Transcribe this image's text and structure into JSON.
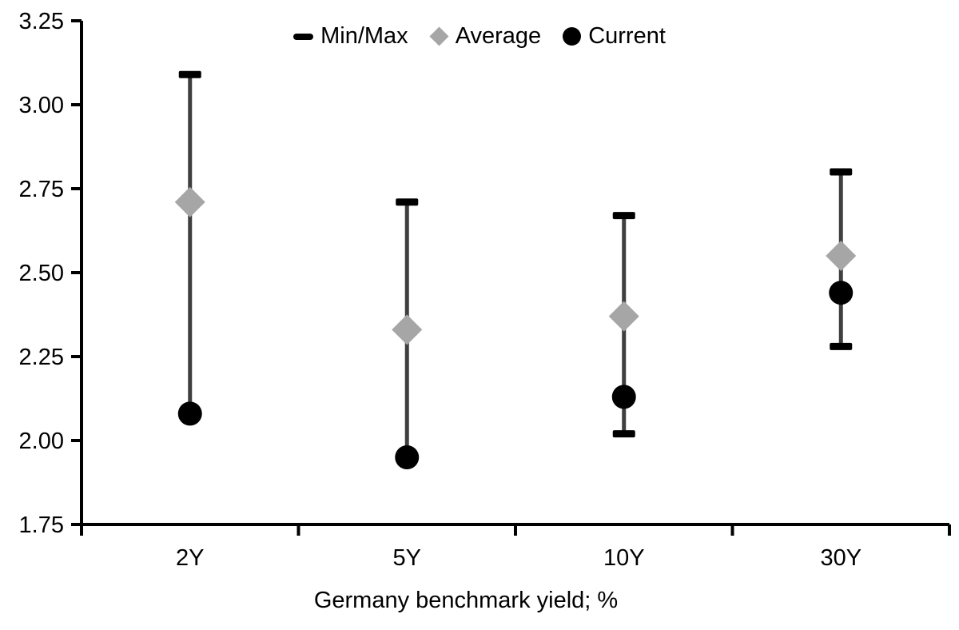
{
  "chart_data": {
    "type": "range-dot",
    "title": "",
    "xlabel": "Germany benchmark yield; %",
    "ylabel": "",
    "ylim": [
      1.75,
      3.25
    ],
    "ytick_step": 0.25,
    "ytick_labels": [
      "3.25",
      "3.00",
      "2.75",
      "2.50",
      "2.25",
      "2.00",
      "1.75"
    ],
    "categories": [
      "2Y",
      "5Y",
      "10Y",
      "30Y"
    ],
    "series": [
      {
        "name": "Min/Max",
        "marker": "dash",
        "role": "range",
        "max": [
          3.09,
          2.71,
          2.67,
          2.8
        ],
        "min": [
          2.08,
          1.95,
          2.02,
          2.28
        ],
        "min_cap_visible": [
          false,
          false,
          true,
          true
        ],
        "cap_color": "#000000",
        "line_color": "#3f3f3f"
      },
      {
        "name": "Average",
        "marker": "diamond",
        "role": "point",
        "color": "#a6a6a6",
        "values": [
          2.71,
          2.33,
          2.37,
          2.55
        ]
      },
      {
        "name": "Current",
        "marker": "circle",
        "role": "point",
        "color": "#000000",
        "values": [
          2.08,
          1.95,
          2.13,
          2.44
        ]
      }
    ],
    "legend_position": "top",
    "grid": false,
    "background": "#ffffff",
    "axis_color": "#000000"
  }
}
